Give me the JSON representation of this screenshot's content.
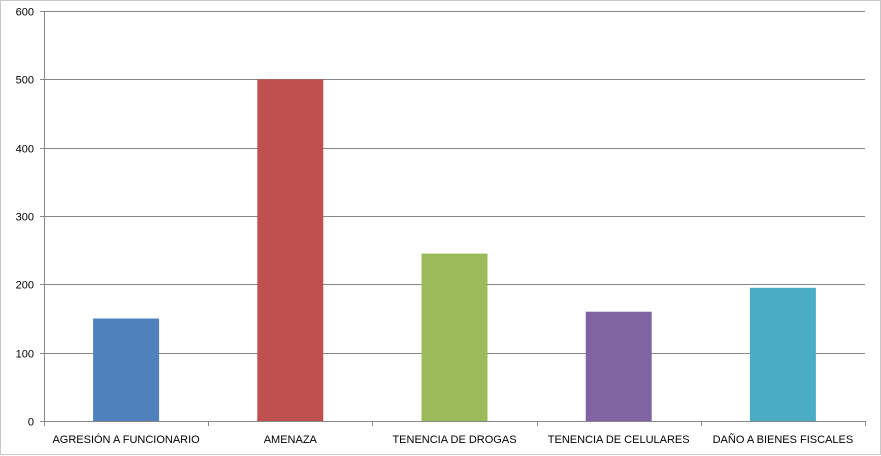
{
  "chart_data": {
    "type": "bar",
    "categories": [
      "AGRESIÓN A FUNCIONARIO",
      "AMENAZA",
      "TENENCIA DE DROGAS",
      "TENENCIA DE CELULARES",
      "DAÑO A BIENES FISCALES"
    ],
    "values": [
      150,
      500,
      245,
      160,
      195
    ],
    "colors": [
      "#4f81bd",
      "#c0504d",
      "#9bbb59",
      "#8064a2",
      "#4bacc6"
    ],
    "ylim": [
      0,
      600
    ],
    "yticks": [
      0,
      100,
      200,
      300,
      400,
      500,
      600
    ],
    "yticklabels": [
      "0",
      "100",
      "200",
      "300",
      "400",
      "500",
      "600"
    ],
    "title": "",
    "xlabel": "",
    "ylabel": "",
    "grid": true,
    "legend": "none"
  }
}
